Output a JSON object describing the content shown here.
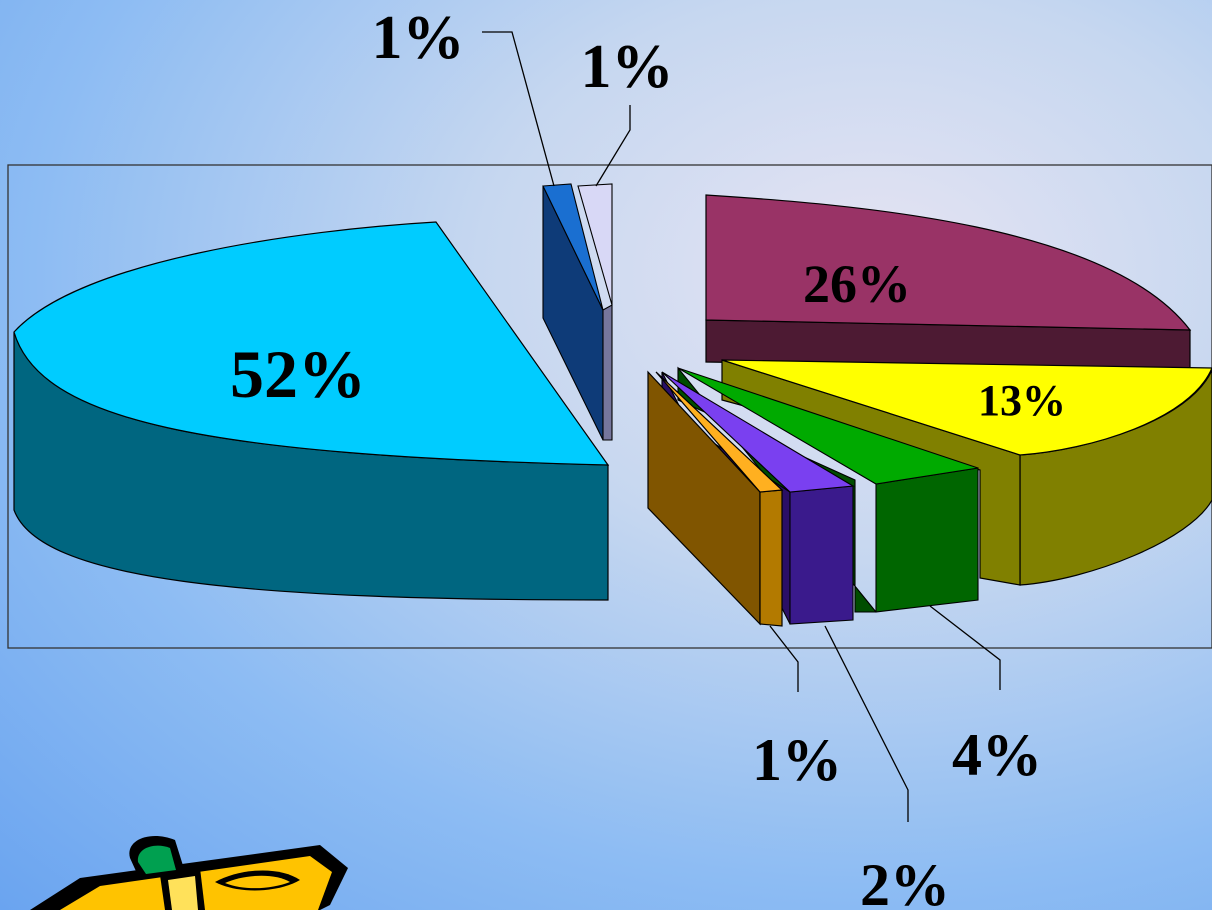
{
  "chart_data": {
    "type": "pie",
    "title": "",
    "legend": "none",
    "values": [
      52,
      1,
      1,
      26,
      13,
      4,
      2,
      1
    ],
    "labels": [
      "52%",
      "1%",
      "1%",
      "26%",
      "13%",
      "4%",
      "2%",
      "1%"
    ],
    "colors": [
      "#00ccff",
      "#1a6fd1",
      "#d8d8f6",
      "#993366",
      "#ffff00",
      "#00aa00",
      "#7a40f0",
      "#ffb020"
    ],
    "three_d": true,
    "exploded": true
  },
  "clipart": {
    "icon": "pencil-clipart-icon"
  }
}
